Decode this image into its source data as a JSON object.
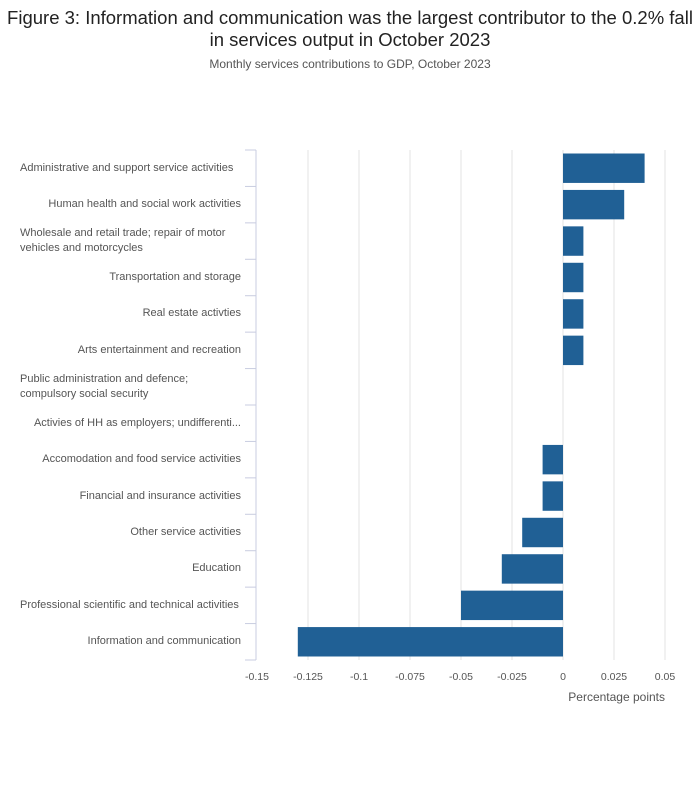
{
  "chart_data": {
    "type": "bar",
    "orientation": "horizontal",
    "title": "Figure 3: Information and communication was the largest contributor to the 0.2% fall in services output in October 2023",
    "subtitle": "Monthly services contributions to GDP, October 2023",
    "xlabel": "Percentage points",
    "ylabel": "",
    "xlim": [
      -0.15,
      0.05
    ],
    "xticks": [
      -0.15,
      -0.125,
      -0.1,
      -0.075,
      -0.05,
      -0.025,
      0,
      0.025,
      0.05
    ],
    "xtick_labels": [
      "-0.15",
      "-0.125",
      "-0.1",
      "-0.075",
      "-0.05",
      "-0.025",
      "0",
      "0.025",
      "0.05"
    ],
    "grid": true,
    "bar_color": "#206095",
    "categories": [
      "Administrative and support service activities",
      "Human health and social work activities",
      "Wholesale and retail trade; repair of motor vehicles and motorcycles",
      "Transportation and storage",
      "Real estate activties",
      "Arts entertainment and recreation",
      "Public administration and defence; compulsory social security",
      "Activies of HH as employers; undifferenti...",
      "Accomodation and food service activities",
      "Financial and insurance activities",
      "Other service activities",
      "Education",
      "Professional scientific and technical activities",
      "Information and communication"
    ],
    "values": [
      0.04,
      0.03,
      0.01,
      0.01,
      0.01,
      0.01,
      0,
      0,
      -0.01,
      -0.01,
      -0.02,
      -0.03,
      -0.05,
      -0.13
    ]
  }
}
